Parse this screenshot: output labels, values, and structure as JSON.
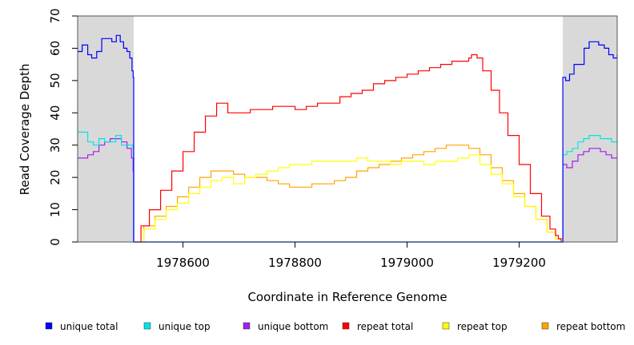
{
  "chart_data": {
    "type": "line",
    "title": "",
    "xlabel": "Coordinate in Reference Genome",
    "ylabel": "Read Coverage Depth",
    "xlim": [
      1978412,
      1979375
    ],
    "ylim": [
      0,
      70
    ],
    "x_ticks": [
      1978600,
      1978800,
      1979000,
      1979200
    ],
    "x_tick_labels": [
      "1978600",
      "1978800",
      "1979000",
      "1979200"
    ],
    "y_ticks": [
      0,
      10,
      20,
      30,
      40,
      50,
      60,
      70
    ],
    "y_tick_labels": [
      "0",
      "10",
      "20",
      "30",
      "40",
      "50",
      "60",
      "70"
    ],
    "shaded_regions": [
      {
        "x_start": 1978412,
        "x_end": 1978512,
        "color": "#d9d9d9"
      },
      {
        "x_start": 1979278,
        "x_end": 1979375,
        "color": "#d9d9d9"
      }
    ],
    "legend_position": "bottom",
    "series": [
      {
        "name": "unique total",
        "color": "#0000ff",
        "x": [
          1978412,
          1978420,
          1978430,
          1978437,
          1978446,
          1978455,
          1978463,
          1978473,
          1978481,
          1978488,
          1978494,
          1978500,
          1978505,
          1978509,
          1978511,
          1978512,
          1979277,
          1979278,
          1979283,
          1979290,
          1979298,
          1979306,
          1979316,
          1979325,
          1979333,
          1979342,
          1979352,
          1979360,
          1979368,
          1979375
        ],
        "y": [
          59,
          61,
          58,
          57,
          59,
          63,
          63,
          62,
          64,
          62,
          60,
          59,
          57,
          53,
          51,
          0,
          0,
          51,
          50,
          52,
          55,
          55,
          60,
          62,
          62,
          61,
          60,
          58,
          57,
          58
        ]
      },
      {
        "name": "unique top",
        "color": "#00e5e5",
        "x": [
          1978412,
          1978420,
          1978430,
          1978440,
          1978450,
          1978460,
          1978470,
          1978480,
          1978490,
          1978500,
          1978511,
          1978512,
          1979277,
          1979278,
          1979285,
          1979295,
          1979305,
          1979315,
          1979325,
          1979335,
          1979345,
          1979355,
          1979365,
          1979375
        ],
        "y": [
          34,
          34,
          31,
          30,
          32,
          31,
          31,
          33,
          30,
          30,
          29,
          0,
          0,
          27,
          28,
          29,
          31,
          32,
          33,
          33,
          32,
          32,
          31,
          31
        ]
      },
      {
        "name": "unique bottom",
        "color": "#a020f0",
        "x": [
          1978412,
          1978420,
          1978430,
          1978440,
          1978450,
          1978460,
          1978470,
          1978480,
          1978490,
          1978500,
          1978508,
          1978511,
          1978512,
          1979277,
          1979278,
          1979285,
          1979295,
          1979305,
          1979315,
          1979325,
          1979335,
          1979345,
          1979355,
          1979365,
          1979375
        ],
        "y": [
          26,
          26,
          27,
          28,
          30,
          31,
          32,
          32,
          31,
          29,
          26,
          22,
          0,
          0,
          24,
          23,
          25,
          27,
          28,
          29,
          29,
          28,
          27,
          26,
          26
        ]
      },
      {
        "name": "repeat total",
        "color": "#ff0000",
        "x": [
          1978512,
          1978525,
          1978540,
          1978560,
          1978580,
          1978600,
          1978620,
          1978640,
          1978660,
          1978670,
          1978680,
          1978700,
          1978720,
          1978740,
          1978760,
          1978780,
          1978800,
          1978820,
          1978840,
          1978860,
          1978880,
          1978900,
          1978920,
          1978940,
          1978960,
          1978980,
          1979000,
          1979020,
          1979040,
          1979060,
          1979080,
          1979100,
          1979110,
          1979115,
          1979125,
          1979135,
          1979150,
          1979165,
          1979180,
          1979200,
          1979220,
          1979240,
          1979255,
          1979265,
          1979270,
          1979275,
          1979278
        ],
        "y": [
          0,
          5,
          10,
          16,
          22,
          28,
          34,
          39,
          43,
          43,
          40,
          40,
          41,
          41,
          42,
          42,
          41,
          42,
          43,
          43,
          45,
          46,
          47,
          49,
          50,
          51,
          52,
          53,
          54,
          55,
          56,
          56,
          57,
          58,
          57,
          53,
          47,
          40,
          33,
          24,
          15,
          8,
          4,
          2,
          1,
          0,
          0
        ]
      },
      {
        "name": "repeat top",
        "color": "#ffff00",
        "x": [
          1978512,
          1978530,
          1978550,
          1978570,
          1978590,
          1978610,
          1978630,
          1978650,
          1978670,
          1978690,
          1978710,
          1978730,
          1978750,
          1978770,
          1978790,
          1978810,
          1978830,
          1978850,
          1978870,
          1978890,
          1978910,
          1978930,
          1978950,
          1978970,
          1978990,
          1979010,
          1979030,
          1979050,
          1979070,
          1979090,
          1979110,
          1979130,
          1979150,
          1979170,
          1979190,
          1979210,
          1979230,
          1979250,
          1979265,
          1979278
        ],
        "y": [
          0,
          4,
          7,
          10,
          12,
          15,
          17,
          19,
          20,
          18,
          20,
          21,
          22,
          23,
          24,
          24,
          25,
          25,
          25,
          25,
          26,
          25,
          25,
          24,
          25,
          25,
          24,
          25,
          25,
          26,
          27,
          24,
          21,
          18,
          14,
          11,
          7,
          3,
          1,
          0
        ]
      },
      {
        "name": "repeat bottom",
        "color": "#ffa500",
        "x": [
          1978512,
          1978530,
          1978550,
          1978570,
          1978590,
          1978610,
          1978630,
          1978650,
          1978670,
          1978690,
          1978710,
          1978730,
          1978750,
          1978770,
          1978790,
          1978810,
          1978830,
          1978850,
          1978870,
          1978890,
          1978910,
          1978930,
          1978950,
          1978970,
          1978990,
          1979010,
          1979030,
          1979050,
          1979070,
          1979090,
          1979110,
          1979130,
          1979150,
          1979170,
          1979190,
          1979210,
          1979230,
          1979250,
          1979265,
          1979278
        ],
        "y": [
          0,
          5,
          8,
          11,
          14,
          17,
          20,
          22,
          22,
          21,
          20,
          20,
          19,
          18,
          17,
          17,
          18,
          18,
          19,
          20,
          22,
          23,
          24,
          25,
          26,
          27,
          28,
          29,
          30,
          30,
          29,
          27,
          23,
          19,
          15,
          11,
          7,
          3,
          1,
          0
        ]
      }
    ]
  }
}
